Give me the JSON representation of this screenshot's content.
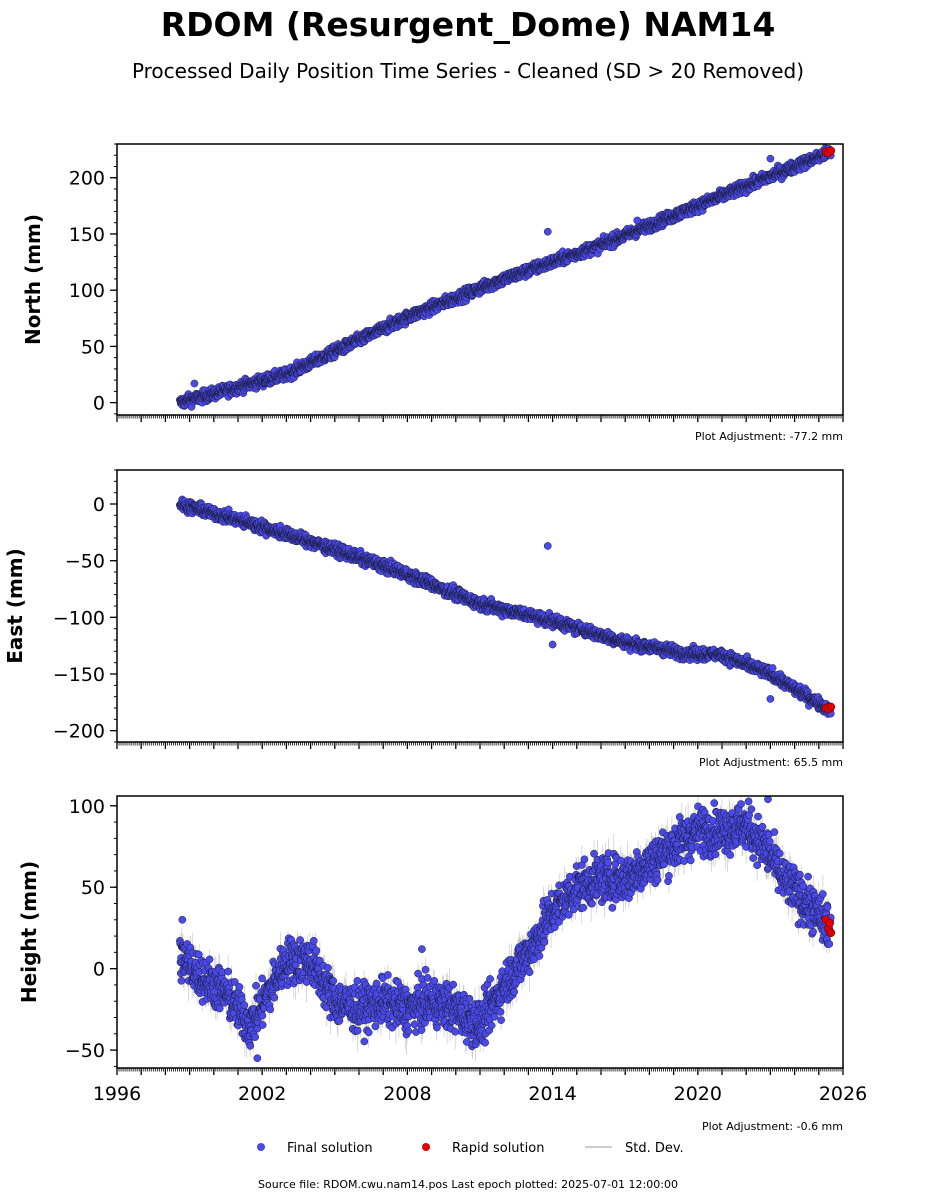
{
  "figure": {
    "title": "RDOM (Resurgent_Dome) NAM14",
    "subtitle": "Processed Daily Position Time Series - Cleaned (SD > 20 Removed)",
    "source_note": "Source file: RDOM.cwu.nam14.pos  Last epoch plotted: 2025-07-01 12:00:00",
    "legend": {
      "final": "Final solution",
      "rapid": "Rapid solution",
      "std": "Std. Dev."
    },
    "colors": {
      "final": "#4a4ae8",
      "final_edge": "#1a1a3a",
      "rapid": "#e00000",
      "std": "#bbbbbb"
    }
  },
  "chart_data": [
    {
      "type": "scatter",
      "ylabel": "North (mm)",
      "adjustment": "Plot Adjustment: -77.2 mm",
      "xlim": [
        1996,
        2026
      ],
      "ylim": [
        -11,
        230
      ],
      "yticks": [
        0,
        50,
        100,
        150,
        200
      ],
      "xticks": [
        1996,
        2002,
        2008,
        2014,
        2020,
        2026
      ],
      "show_xtick_labels": false,
      "trend": [
        [
          1998.6,
          0
        ],
        [
          2003.0,
          25
        ],
        [
          2008.0,
          76
        ],
        [
          2012.0,
          110
        ],
        [
          2016.0,
          140
        ],
        [
          2020.0,
          175
        ],
        [
          2025.5,
          223
        ]
      ],
      "noise": 2.5,
      "outliers": [
        [
          1999.2,
          17
        ],
        [
          2013.8,
          152
        ],
        [
          2023.0,
          217
        ],
        [
          2017.5,
          162
        ]
      ],
      "rapid": [
        [
          2025.3,
          223
        ],
        [
          2025.4,
          222
        ],
        [
          2025.5,
          224
        ]
      ]
    },
    {
      "type": "scatter",
      "ylabel": "East (mm)",
      "adjustment": "Plot Adjustment: 65.5 mm",
      "xlim": [
        1996,
        2026
      ],
      "ylim": [
        -210,
        30
      ],
      "yticks": [
        -200,
        -150,
        -100,
        -50,
        0
      ],
      "xticks": [
        1996,
        2002,
        2008,
        2014,
        2020,
        2026
      ],
      "show_xtick_labels": false,
      "trend": [
        [
          1998.6,
          0
        ],
        [
          2002.0,
          -20
        ],
        [
          2005.0,
          -40
        ],
        [
          2008.0,
          -62
        ],
        [
          2011.0,
          -88
        ],
        [
          2014.0,
          -103
        ],
        [
          2017.0,
          -122
        ],
        [
          2019.5,
          -132
        ],
        [
          2021.0,
          -133
        ],
        [
          2023.0,
          -150
        ],
        [
          2025.5,
          -182
        ]
      ],
      "noise": 2.5,
      "outliers": [
        [
          2013.8,
          -37
        ],
        [
          2014.0,
          -124
        ],
        [
          2023.0,
          -172
        ]
      ],
      "rapid": [
        [
          2025.3,
          -180
        ],
        [
          2025.4,
          -181
        ],
        [
          2025.5,
          -179
        ]
      ]
    },
    {
      "type": "scatter",
      "ylabel": "Height (mm)",
      "adjustment": "Plot Adjustment: -0.6 mm",
      "xlim": [
        1996,
        2026
      ],
      "ylim": [
        -61,
        106
      ],
      "yticks": [
        -50,
        0,
        50,
        100
      ],
      "xticks": [
        1996,
        2002,
        2008,
        2014,
        2020,
        2026
      ],
      "show_xtick_labels": true,
      "trend": [
        [
          1998.6,
          8
        ],
        [
          1999.5,
          -5
        ],
        [
          2000.5,
          -15
        ],
        [
          2001.5,
          -35
        ],
        [
          2002.0,
          -22
        ],
        [
          2003.0,
          5
        ],
        [
          2004.0,
          5
        ],
        [
          2005.0,
          -20
        ],
        [
          2006.0,
          -25
        ],
        [
          2007.0,
          -20
        ],
        [
          2008.0,
          -25
        ],
        [
          2009.0,
          -20
        ],
        [
          2010.0,
          -25
        ],
        [
          2011.0,
          -35
        ],
        [
          2012.0,
          -10
        ],
        [
          2013.0,
          10
        ],
        [
          2014.0,
          35
        ],
        [
          2015.0,
          50
        ],
        [
          2016.0,
          55
        ],
        [
          2017.0,
          55
        ],
        [
          2018.0,
          65
        ],
        [
          2019.0,
          75
        ],
        [
          2020.0,
          85
        ],
        [
          2021.0,
          85
        ],
        [
          2022.0,
          88
        ],
        [
          2023.0,
          70
        ],
        [
          2023.5,
          55
        ],
        [
          2024.5,
          40
        ],
        [
          2025.0,
          32
        ],
        [
          2025.5,
          25
        ]
      ],
      "noise": 7,
      "outliers": [
        [
          1998.7,
          30
        ],
        [
          2001.8,
          -55
        ],
        [
          2008.6,
          12
        ],
        [
          2022.9,
          104
        ]
      ],
      "rapid": [
        [
          2025.3,
          30
        ],
        [
          2025.4,
          25
        ],
        [
          2025.5,
          22
        ],
        [
          2025.45,
          28
        ]
      ]
    }
  ]
}
